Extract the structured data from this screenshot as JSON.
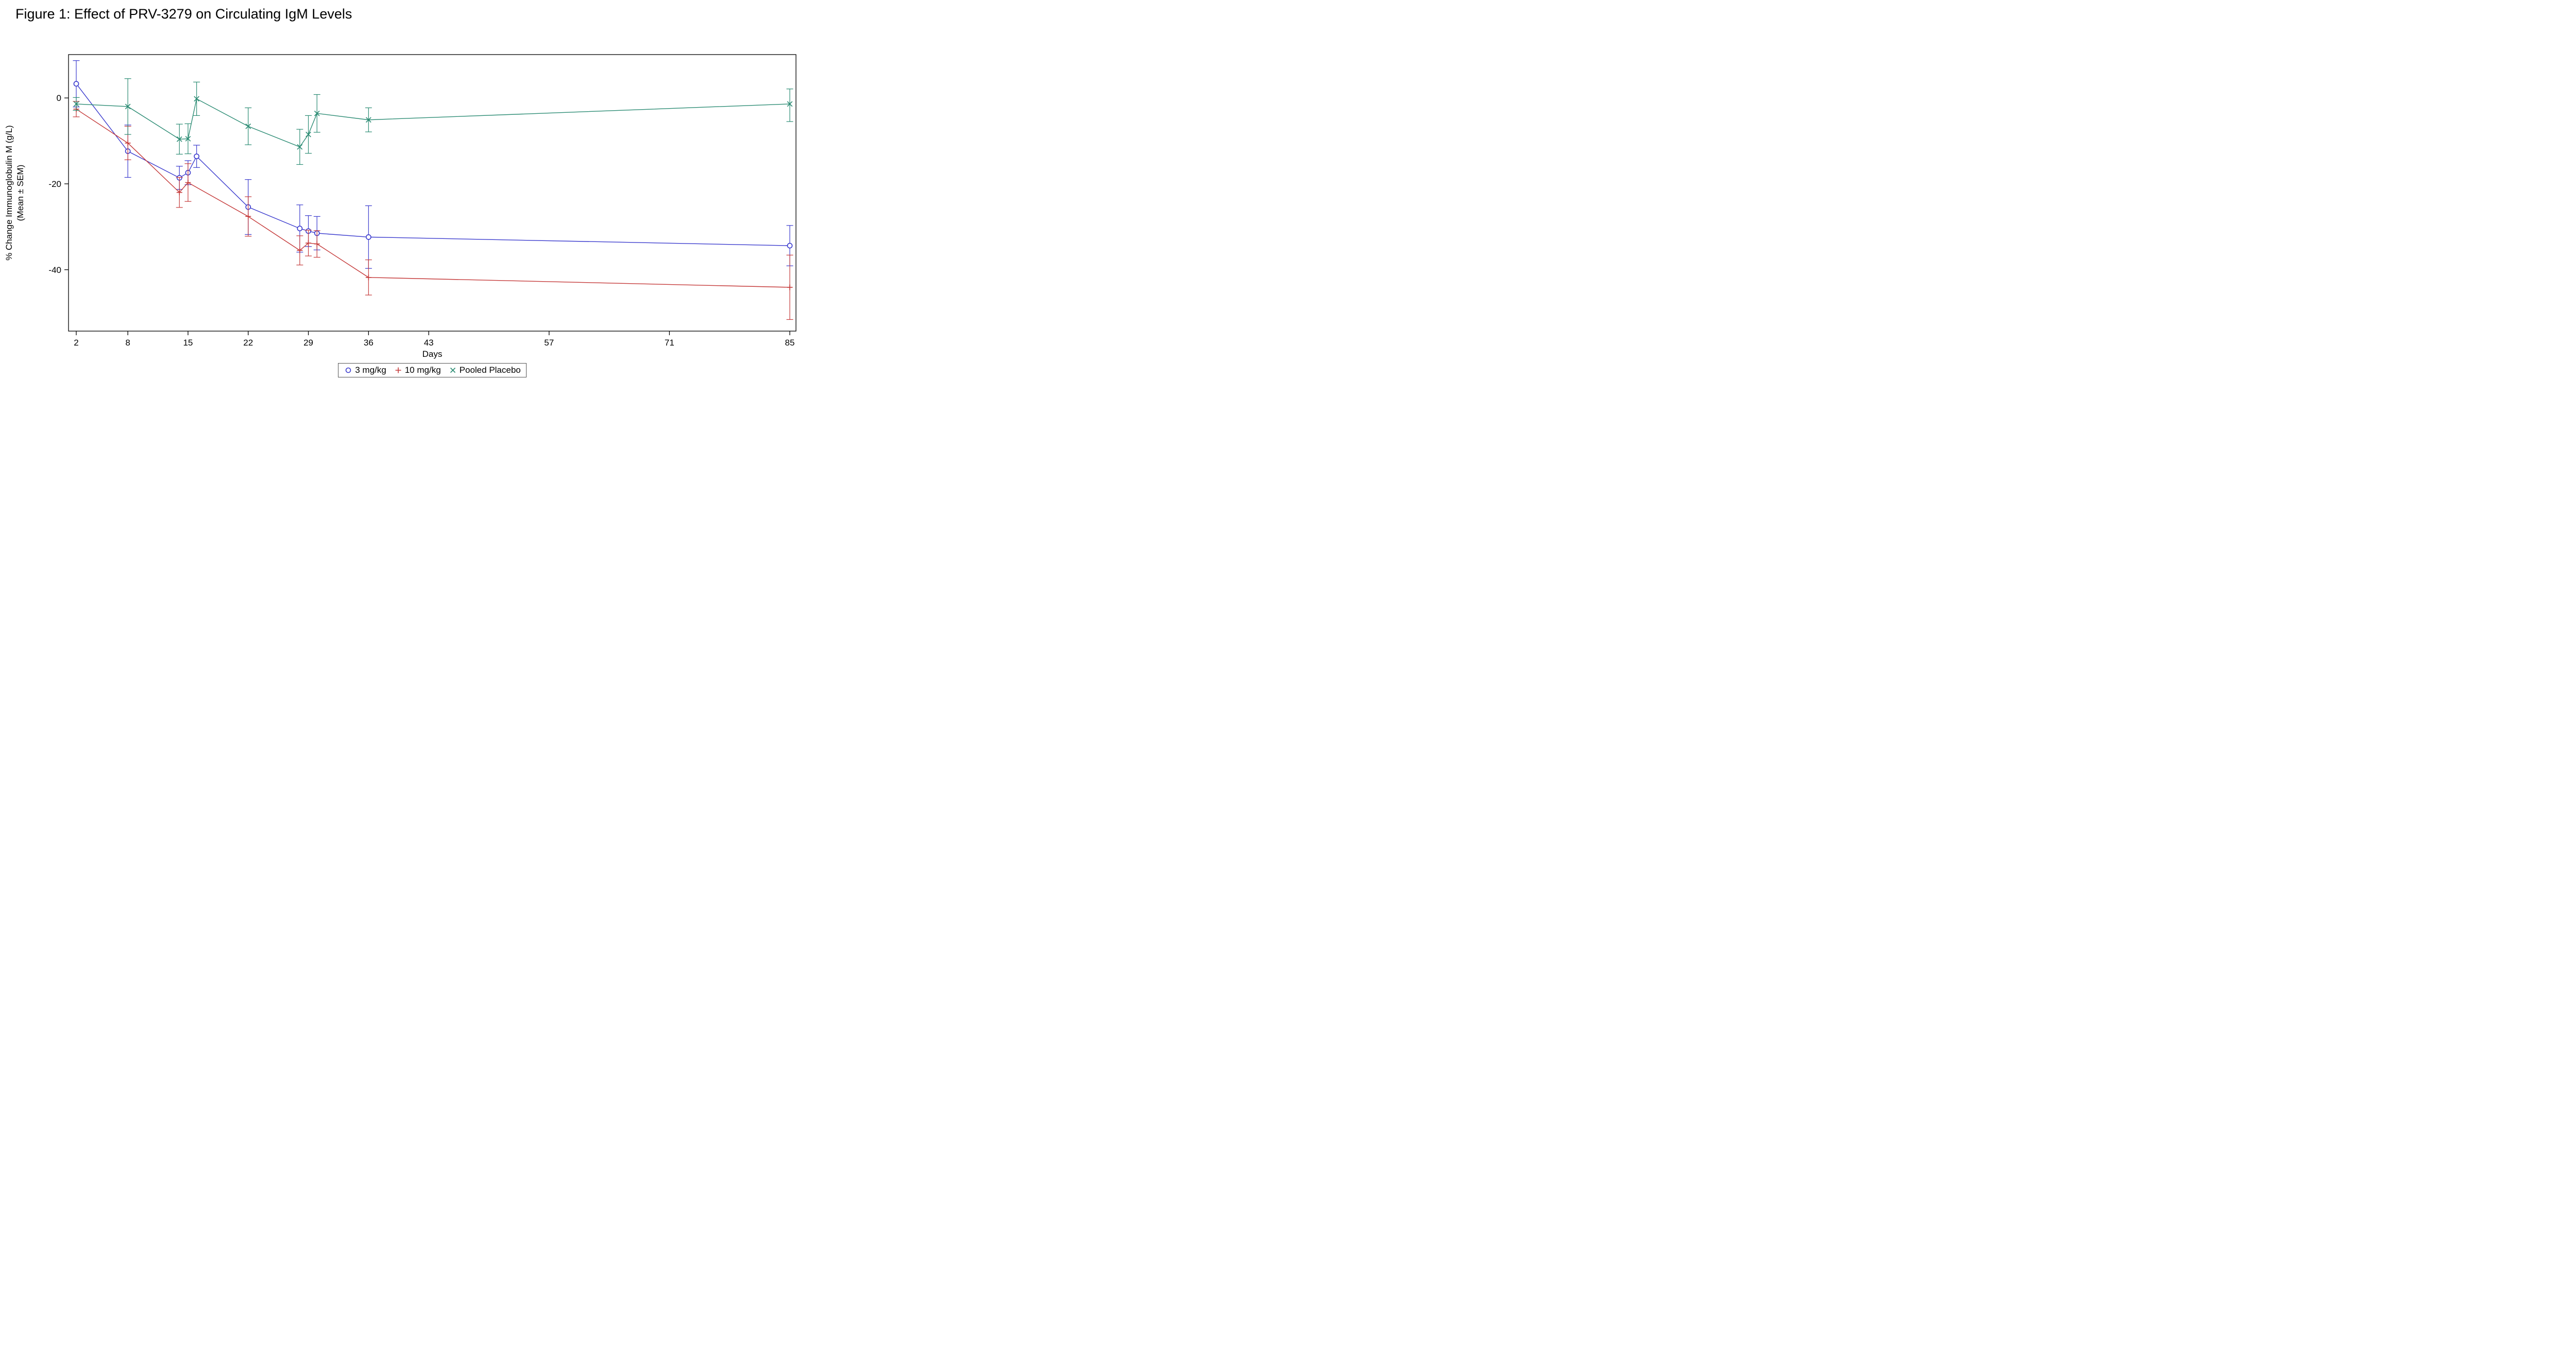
{
  "chart_data": {
    "type": "line",
    "title": "Figure 1: Effect of PRV-3279 on Circulating IgM Levels",
    "xlabel": "Days",
    "ylabel": "% Change Immunoglobulin M (g/L)",
    "ylabel2": "(Mean ± SEM)",
    "error_bars": "SEM",
    "grid": false,
    "legend_position": "bottom-center",
    "xlim": [
      2,
      85
    ],
    "ylim": [
      -54.3,
      10.1
    ],
    "xticks": [
      2,
      8,
      15,
      22,
      29,
      36,
      43,
      57,
      71,
      85
    ],
    "yticks": [
      0,
      -20,
      -40
    ],
    "axis_color": "#000000",
    "background_color": "#ffffff",
    "series": [
      {
        "name": "3 mg/kg",
        "color": "#3b3bce",
        "marker": "circle",
        "points": [
          {
            "day": 2,
            "mean": 3.3,
            "lo": -2.1,
            "hi": 8.7
          },
          {
            "day": 8,
            "mean": -12.4,
            "lo": -18.5,
            "hi": -6.3
          },
          {
            "day": 14,
            "mean": -18.6,
            "lo": -21.3,
            "hi": -15.9
          },
          {
            "day": 15,
            "mean": -17.4,
            "lo": -20.2,
            "hi": -14.6
          },
          {
            "day": 16,
            "mean": -13.6,
            "lo": -16.2,
            "hi": -11.0
          },
          {
            "day": 22,
            "mean": -25.4,
            "lo": -31.8,
            "hi": -19.0
          },
          {
            "day": 28,
            "mean": -30.4,
            "lo": -35.9,
            "hi": -24.9
          },
          {
            "day": 29,
            "mean": -31.0,
            "lo": -34.6,
            "hi": -27.4
          },
          {
            "day": 30,
            "mean": -31.5,
            "lo": -35.4,
            "hi": -27.6
          },
          {
            "day": 36,
            "mean": -32.4,
            "lo": -39.7,
            "hi": -25.1
          },
          {
            "day": 85,
            "mean": -34.4,
            "lo": -39.1,
            "hi": -29.7
          }
        ]
      },
      {
        "name": "10 mg/kg",
        "color": "#c53a3a",
        "marker": "plus",
        "points": [
          {
            "day": 2,
            "mean": -2.6,
            "lo": -4.4,
            "hi": -0.8
          },
          {
            "day": 8,
            "mean": -10.5,
            "lo": -14.4,
            "hi": -6.6
          },
          {
            "day": 14,
            "mean": -22.0,
            "lo": -25.5,
            "hi": -18.5
          },
          {
            "day": 15,
            "mean": -19.7,
            "lo": -24.1,
            "hi": -15.3
          },
          {
            "day": 22,
            "mean": -27.6,
            "lo": -32.2,
            "hi": -23.0
          },
          {
            "day": 28,
            "mean": -35.5,
            "lo": -38.9,
            "hi": -32.1
          },
          {
            "day": 29,
            "mean": -33.8,
            "lo": -36.8,
            "hi": -30.8
          },
          {
            "day": 30,
            "mean": -34.0,
            "lo": -37.1,
            "hi": -30.9
          },
          {
            "day": 36,
            "mean": -41.8,
            "lo": -45.9,
            "hi": -37.7
          },
          {
            "day": 85,
            "mean": -44.1,
            "lo": -51.6,
            "hi": -36.6
          }
        ]
      },
      {
        "name": "Pooled Placebo",
        "color": "#2c8c74",
        "marker": "x",
        "points": [
          {
            "day": 2,
            "mean": -1.4,
            "lo": -2.9,
            "hi": 0.1
          },
          {
            "day": 8,
            "mean": -2.0,
            "lo": -8.5,
            "hi": 4.5
          },
          {
            "day": 14,
            "mean": -9.6,
            "lo": -13.1,
            "hi": -6.1
          },
          {
            "day": 15,
            "mean": -9.5,
            "lo": -13.0,
            "hi": -6.0
          },
          {
            "day": 16,
            "mean": -0.2,
            "lo": -4.1,
            "hi": 3.7
          },
          {
            "day": 22,
            "mean": -6.6,
            "lo": -10.9,
            "hi": -2.3
          },
          {
            "day": 28,
            "mean": -11.4,
            "lo": -15.5,
            "hi": -7.3
          },
          {
            "day": 29,
            "mean": -8.5,
            "lo": -12.9,
            "hi": -4.1
          },
          {
            "day": 30,
            "mean": -3.6,
            "lo": -8.0,
            "hi": 0.8
          },
          {
            "day": 36,
            "mean": -5.1,
            "lo": -7.9,
            "hi": -2.3
          },
          {
            "day": 85,
            "mean": -1.4,
            "lo": -5.5,
            "hi": 2.1
          }
        ]
      }
    ]
  }
}
